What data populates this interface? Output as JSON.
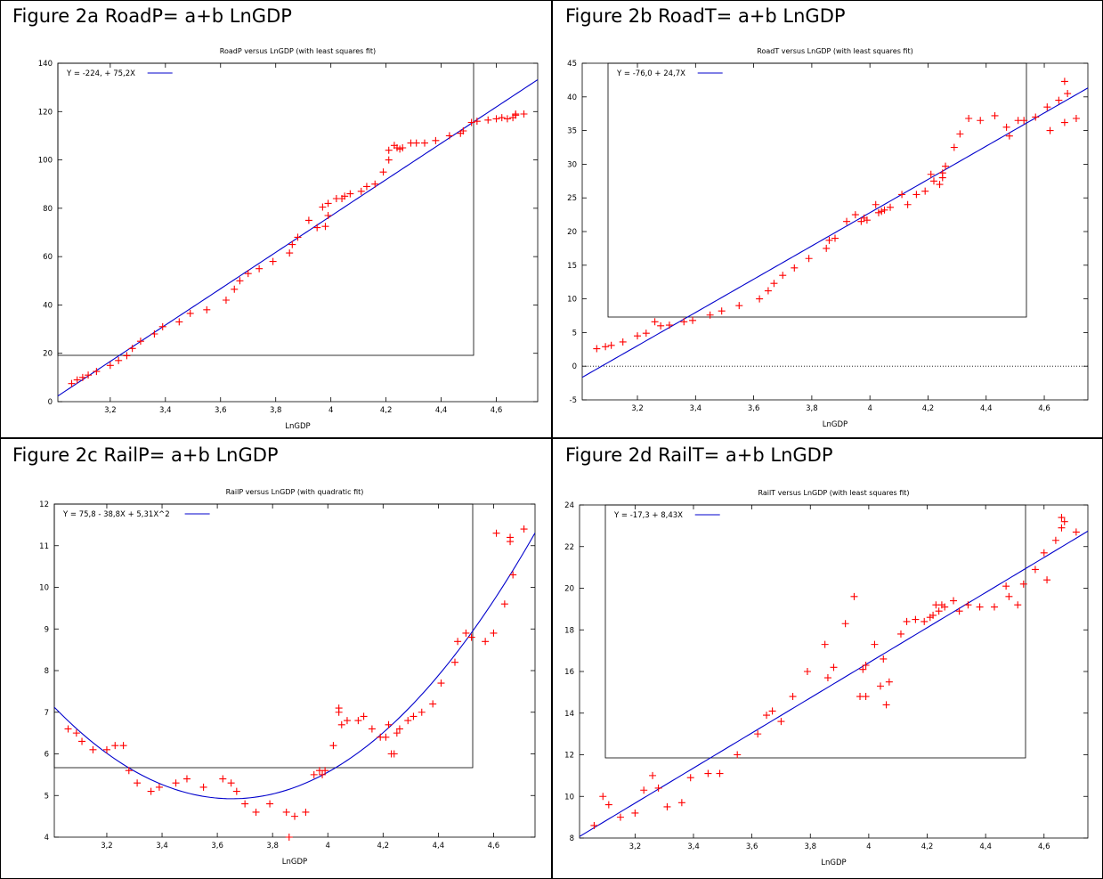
{
  "panels": [
    {
      "heading": "Figure 2a RoadP= a+b LnGDP",
      "chart_data": {
        "type": "scatter",
        "title": "RoadP versus LnGDP (with least squares fit)",
        "xlabel": "LnGDP",
        "ylabel": "",
        "xlim": [
          3.01,
          4.75
        ],
        "ylim": [
          0,
          140
        ],
        "xticks": [
          3.2,
          3.4,
          3.6,
          3.8,
          4,
          4.2,
          4.4,
          4.6
        ],
        "xtick_labels": [
          "3,2",
          "3,4",
          "3,6",
          "3,8",
          "4",
          "4,2",
          "4,4",
          "4,6"
        ],
        "yticks": [
          0,
          20,
          40,
          60,
          80,
          100,
          120,
          140
        ],
        "ytick_labels": [
          "0",
          "20",
          "40",
          "60",
          "80",
          "100",
          "120",
          "140"
        ],
        "legend": "Y = -224, + 75,2X",
        "legend_position": "top-left",
        "fit": {
          "kind": "linear",
          "coefficients": [
            -224,
            75.2
          ]
        },
        "points": [
          [
            3.06,
            7.5
          ],
          [
            3.08,
            9
          ],
          [
            3.1,
            10
          ],
          [
            3.12,
            11
          ],
          [
            3.15,
            12.5
          ],
          [
            3.2,
            15
          ],
          [
            3.23,
            17
          ],
          [
            3.26,
            19
          ],
          [
            3.28,
            22
          ],
          [
            3.31,
            25
          ],
          [
            3.36,
            28
          ],
          [
            3.39,
            31
          ],
          [
            3.45,
            33
          ],
          [
            3.49,
            36.5
          ],
          [
            3.55,
            38
          ],
          [
            3.62,
            42
          ],
          [
            3.65,
            46.5
          ],
          [
            3.67,
            50
          ],
          [
            3.7,
            53
          ],
          [
            3.74,
            55
          ],
          [
            3.79,
            58
          ],
          [
            3.85,
            61.5
          ],
          [
            3.86,
            65
          ],
          [
            3.88,
            68
          ],
          [
            3.92,
            75
          ],
          [
            3.95,
            72
          ],
          [
            3.97,
            80.5
          ],
          [
            3.98,
            72.5
          ],
          [
            3.99,
            77
          ],
          [
            3.99,
            82
          ],
          [
            4.02,
            84
          ],
          [
            4.04,
            84
          ],
          [
            4.05,
            85
          ],
          [
            4.07,
            86
          ],
          [
            4.11,
            87
          ],
          [
            4.13,
            89
          ],
          [
            4.16,
            90
          ],
          [
            4.19,
            95
          ],
          [
            4.21,
            100
          ],
          [
            4.21,
            104
          ],
          [
            4.23,
            106
          ],
          [
            4.24,
            105
          ],
          [
            4.25,
            104.5
          ],
          [
            4.26,
            105
          ],
          [
            4.29,
            107
          ],
          [
            4.31,
            107
          ],
          [
            4.34,
            107
          ],
          [
            4.38,
            108
          ],
          [
            4.43,
            110
          ],
          [
            4.47,
            111
          ],
          [
            4.48,
            112
          ],
          [
            4.51,
            115.5
          ],
          [
            4.53,
            116
          ],
          [
            4.57,
            116.5
          ],
          [
            4.6,
            117
          ],
          [
            4.62,
            117.5
          ],
          [
            4.64,
            117
          ],
          [
            4.66,
            117.5
          ],
          [
            4.67,
            118.5
          ],
          [
            4.67,
            119
          ],
          [
            4.7,
            119
          ]
        ]
      }
    },
    {
      "heading": "Figure 2b RoadT= a+b LnGDP",
      "chart_data": {
        "type": "scatter",
        "title": "RoadT versus LnGDP (with least squares fit)",
        "xlabel": "LnGDP",
        "ylabel": "",
        "xlim": [
          3.01,
          4.75
        ],
        "ylim": [
          -5,
          45
        ],
        "xticks": [
          3.2,
          3.4,
          3.6,
          3.8,
          4,
          4.2,
          4.4,
          4.6
        ],
        "xtick_labels": [
          "3,2",
          "3,4",
          "3,6",
          "3,8",
          "4",
          "4,2",
          "4,4",
          "4,6"
        ],
        "yticks": [
          -5,
          0,
          5,
          10,
          15,
          20,
          25,
          30,
          35,
          40,
          45
        ],
        "ytick_labels": [
          "-5",
          "0",
          "5",
          "10",
          "15",
          "20",
          "25",
          "30",
          "35",
          "40",
          "45"
        ],
        "legend": "Y = -76,0 + 24,7X",
        "legend_position": "top-left",
        "fit": {
          "kind": "linear",
          "coefficients": [
            -76.0,
            24.7
          ]
        },
        "zero_line": true,
        "points": [
          [
            3.06,
            2.6
          ],
          [
            3.09,
            2.9
          ],
          [
            3.11,
            3.1
          ],
          [
            3.15,
            3.6
          ],
          [
            3.2,
            4.5
          ],
          [
            3.23,
            4.9
          ],
          [
            3.26,
            6.6
          ],
          [
            3.28,
            6
          ],
          [
            3.31,
            6.1
          ],
          [
            3.36,
            6.6
          ],
          [
            3.39,
            6.8
          ],
          [
            3.45,
            7.6
          ],
          [
            3.49,
            8.2
          ],
          [
            3.55,
            9
          ],
          [
            3.62,
            10
          ],
          [
            3.65,
            11.2
          ],
          [
            3.67,
            12.3
          ],
          [
            3.7,
            13.5
          ],
          [
            3.74,
            14.6
          ],
          [
            3.79,
            16
          ],
          [
            3.85,
            17.5
          ],
          [
            3.86,
            18.7
          ],
          [
            3.88,
            19
          ],
          [
            3.92,
            21.5
          ],
          [
            3.95,
            22.5
          ],
          [
            3.97,
            21.5
          ],
          [
            3.98,
            22
          ],
          [
            3.99,
            21.7
          ],
          [
            4.02,
            24
          ],
          [
            4.03,
            22.8
          ],
          [
            4.04,
            23
          ],
          [
            4.05,
            23.2
          ],
          [
            4.07,
            23.6
          ],
          [
            4.11,
            25.5
          ],
          [
            4.13,
            24
          ],
          [
            4.16,
            25.5
          ],
          [
            4.19,
            26
          ],
          [
            4.21,
            28.5
          ],
          [
            4.22,
            27.5
          ],
          [
            4.24,
            27
          ],
          [
            4.25,
            28
          ],
          [
            4.25,
            28.7
          ],
          [
            4.26,
            29.7
          ],
          [
            4.29,
            32.5
          ],
          [
            4.31,
            34.5
          ],
          [
            4.34,
            36.8
          ],
          [
            4.38,
            36.5
          ],
          [
            4.43,
            37.2
          ],
          [
            4.47,
            35.5
          ],
          [
            4.48,
            34.2
          ],
          [
            4.51,
            36.5
          ],
          [
            4.53,
            36.5
          ],
          [
            4.57,
            37
          ],
          [
            4.61,
            38.5
          ],
          [
            4.62,
            35
          ],
          [
            4.65,
            39.5
          ],
          [
            4.67,
            36.2
          ],
          [
            4.67,
            42.3
          ],
          [
            4.68,
            40.5
          ],
          [
            4.71,
            36.8
          ]
        ]
      }
    },
    {
      "heading": "Figure 2c RailP= a+b LnGDP",
      "chart_data": {
        "type": "scatter",
        "title": "RailP versus LnGDP (with quadratic fit)",
        "xlabel": "LnGDP",
        "ylabel": "",
        "xlim": [
          3.01,
          4.75
        ],
        "ylim": [
          4,
          12
        ],
        "xticks": [
          3.2,
          3.4,
          3.6,
          3.8,
          4,
          4.2,
          4.4,
          4.6
        ],
        "xtick_labels": [
          "3,2",
          "3,4",
          "3,6",
          "3,8",
          "4",
          "4,2",
          "4,4",
          "4,6"
        ],
        "yticks": [
          4,
          5,
          6,
          7,
          8,
          9,
          10,
          11,
          12
        ],
        "ytick_labels": [
          "4",
          "5",
          "6",
          "7",
          "8",
          "9",
          "10",
          "11",
          "12"
        ],
        "legend": "Y = 75,8 - 38,8X + 5,31X^2",
        "legend_position": "top-left",
        "fit": {
          "kind": "quadratic",
          "coefficients": [
            75.8,
            -38.8,
            5.31
          ]
        },
        "points": [
          [
            3.06,
            6.6
          ],
          [
            3.09,
            6.5
          ],
          [
            3.11,
            6.3
          ],
          [
            3.15,
            6.1
          ],
          [
            3.2,
            6.1
          ],
          [
            3.23,
            6.2
          ],
          [
            3.26,
            6.2
          ],
          [
            3.28,
            5.6
          ],
          [
            3.31,
            5.3
          ],
          [
            3.36,
            5.1
          ],
          [
            3.39,
            5.2
          ],
          [
            3.45,
            5.3
          ],
          [
            3.49,
            5.4
          ],
          [
            3.55,
            5.2
          ],
          [
            3.62,
            5.4
          ],
          [
            3.65,
            5.3
          ],
          [
            3.67,
            5.1
          ],
          [
            3.7,
            4.8
          ],
          [
            3.74,
            4.6
          ],
          [
            3.79,
            4.8
          ],
          [
            3.85,
            4.6
          ],
          [
            3.86,
            4
          ],
          [
            3.88,
            4.5
          ],
          [
            3.92,
            4.6
          ],
          [
            3.95,
            5.5
          ],
          [
            3.97,
            5.6
          ],
          [
            3.98,
            5.5
          ],
          [
            3.99,
            5.6
          ],
          [
            4.02,
            6.2
          ],
          [
            4.04,
            7
          ],
          [
            4.04,
            7.1
          ],
          [
            4.05,
            6.7
          ],
          [
            4.07,
            6.8
          ],
          [
            4.11,
            6.8
          ],
          [
            4.13,
            6.9
          ],
          [
            4.16,
            6.6
          ],
          [
            4.19,
            6.4
          ],
          [
            4.21,
            6.4
          ],
          [
            4.22,
            6.7
          ],
          [
            4.23,
            6
          ],
          [
            4.24,
            6
          ],
          [
            4.25,
            6.5
          ],
          [
            4.26,
            6.6
          ],
          [
            4.29,
            6.8
          ],
          [
            4.31,
            6.9
          ],
          [
            4.34,
            7
          ],
          [
            4.38,
            7.2
          ],
          [
            4.41,
            7.7
          ],
          [
            4.46,
            8.2
          ],
          [
            4.47,
            8.7
          ],
          [
            4.5,
            8.9
          ],
          [
            4.52,
            8.8
          ],
          [
            4.57,
            8.7
          ],
          [
            4.6,
            8.9
          ],
          [
            4.61,
            11.3
          ],
          [
            4.64,
            9.6
          ],
          [
            4.66,
            11.2
          ],
          [
            4.66,
            11.1
          ],
          [
            4.67,
            10.3
          ],
          [
            4.71,
            11.4
          ]
        ]
      }
    },
    {
      "heading": "Figure 2d RailT= a+b LnGDP",
      "chart_data": {
        "type": "scatter",
        "title": "RailT versus LnGDP (with least squares fit)",
        "xlabel": "LnGDP",
        "ylabel": "",
        "xlim": [
          3.01,
          4.75
        ],
        "ylim": [
          8,
          24
        ],
        "xticks": [
          3.2,
          3.4,
          3.6,
          3.8,
          4,
          4.2,
          4.4,
          4.6
        ],
        "xtick_labels": [
          "3,2",
          "3,4",
          "3,6",
          "3,8",
          "4",
          "4,2",
          "4,4",
          "4,6"
        ],
        "yticks": [
          8,
          10,
          12,
          14,
          16,
          18,
          20,
          22,
          24
        ],
        "ytick_labels": [
          "8",
          "10",
          "12",
          "14",
          "16",
          "18",
          "20",
          "22",
          "24"
        ],
        "legend": "Y = -17,3 + 8,43X",
        "legend_position": "top-left",
        "fit": {
          "kind": "linear",
          "coefficients": [
            -17.3,
            8.43
          ]
        },
        "points": [
          [
            3.06,
            8.6
          ],
          [
            3.09,
            10
          ],
          [
            3.11,
            9.6
          ],
          [
            3.15,
            9
          ],
          [
            3.2,
            9.2
          ],
          [
            3.23,
            10.3
          ],
          [
            3.26,
            11
          ],
          [
            3.28,
            10.4
          ],
          [
            3.31,
            9.5
          ],
          [
            3.36,
            9.7
          ],
          [
            3.39,
            10.9
          ],
          [
            3.45,
            11.1
          ],
          [
            3.49,
            11.1
          ],
          [
            3.55,
            12
          ],
          [
            3.62,
            13
          ],
          [
            3.65,
            13.9
          ],
          [
            3.67,
            14.1
          ],
          [
            3.7,
            13.6
          ],
          [
            3.74,
            14.8
          ],
          [
            3.79,
            16
          ],
          [
            3.85,
            17.3
          ],
          [
            3.86,
            15.7
          ],
          [
            3.88,
            16.2
          ],
          [
            3.92,
            18.3
          ],
          [
            3.95,
            19.6
          ],
          [
            3.97,
            14.8
          ],
          [
            3.98,
            16.1
          ],
          [
            3.99,
            16.3
          ],
          [
            3.99,
            14.8
          ],
          [
            4.02,
            17.3
          ],
          [
            4.04,
            15.3
          ],
          [
            4.05,
            16.6
          ],
          [
            4.06,
            14.4
          ],
          [
            4.07,
            15.5
          ],
          [
            4.11,
            17.8
          ],
          [
            4.13,
            18.4
          ],
          [
            4.16,
            18.5
          ],
          [
            4.19,
            18.4
          ],
          [
            4.21,
            18.6
          ],
          [
            4.22,
            18.7
          ],
          [
            4.23,
            19.2
          ],
          [
            4.24,
            18.9
          ],
          [
            4.25,
            19.2
          ],
          [
            4.26,
            19.1
          ],
          [
            4.29,
            19.4
          ],
          [
            4.31,
            18.9
          ],
          [
            4.34,
            19.2
          ],
          [
            4.38,
            19.1
          ],
          [
            4.43,
            19.1
          ],
          [
            4.47,
            20.1
          ],
          [
            4.48,
            19.6
          ],
          [
            4.51,
            19.2
          ],
          [
            4.53,
            20.2
          ],
          [
            4.57,
            20.9
          ],
          [
            4.6,
            21.7
          ],
          [
            4.61,
            20.4
          ],
          [
            4.64,
            22.3
          ],
          [
            4.66,
            22.9
          ],
          [
            4.66,
            23.4
          ],
          [
            4.67,
            23.2
          ],
          [
            4.71,
            22.7
          ]
        ]
      }
    }
  ],
  "colors": {
    "points": "#ff0000",
    "fit": "#0000cc",
    "frame": "#000000"
  }
}
